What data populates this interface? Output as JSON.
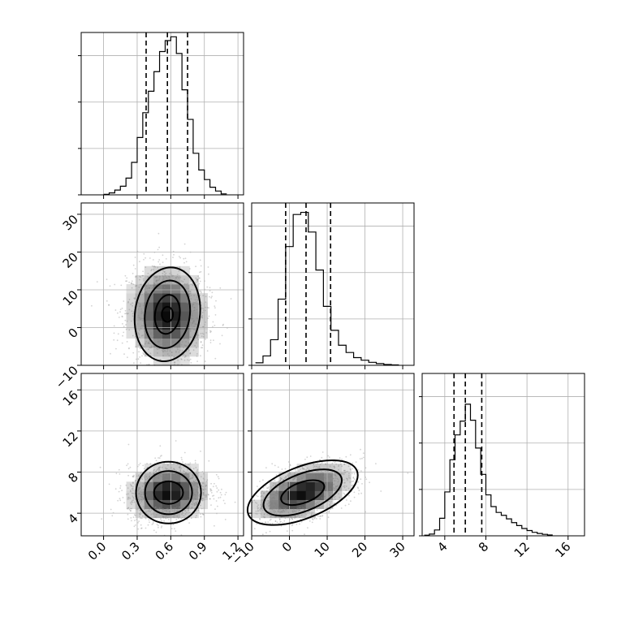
{
  "chart_data": {
    "type": "corner",
    "colors": {
      "line": "#000000",
      "grid": "#b0b0b0",
      "points": "#808080"
    },
    "grid": true,
    "parameters": [
      {
        "name": "",
        "range": [
          -0.2,
          1.25
        ],
        "ticks": [
          0.0,
          0.3,
          0.6,
          0.9,
          1.2
        ],
        "tick_labels": [
          "0.0",
          "0.3",
          "0.6",
          "0.9",
          "1.2"
        ],
        "quantiles": [
          0.38,
          0.57,
          0.75
        ],
        "hist": {
          "bin_edges": [
            0.0,
            0.05,
            0.1,
            0.15,
            0.2,
            0.25,
            0.3,
            0.35,
            0.4,
            0.45,
            0.5,
            0.55,
            0.6,
            0.65,
            0.7,
            0.75,
            0.8,
            0.85,
            0.9,
            0.95,
            1.0,
            1.05,
            1.1
          ],
          "counts": [
            1,
            4,
            10,
            18,
            35,
            68,
            120,
            172,
            217,
            258,
            300,
            323,
            331,
            296,
            220,
            158,
            87,
            52,
            32,
            16,
            8,
            2
          ],
          "max": 340
        }
      },
      {
        "name": "",
        "range": [
          -10,
          33
        ],
        "ticks": [
          -10,
          0,
          10,
          20,
          30
        ],
        "tick_labels": [
          "−10",
          "0",
          "10",
          "20",
          "30"
        ],
        "quantiles": [
          -1.0,
          4.4,
          10.9
        ],
        "hist": {
          "bin_edges": [
            -9,
            -7,
            -5,
            -3,
            -1,
            1,
            3,
            5,
            7,
            9,
            11,
            13,
            15,
            17,
            19,
            21,
            23,
            25,
            27,
            29
          ],
          "counts": [
            6,
            22,
            60,
            155,
            278,
            353,
            358,
            312,
            223,
            138,
            82,
            47,
            30,
            18,
            12,
            7,
            4,
            2,
            1
          ],
          "max": 380
        }
      },
      {
        "name": "",
        "range": [
          1.8,
          17.6
        ],
        "ticks": [
          4,
          8,
          12,
          16
        ],
        "tick_labels": [
          "4",
          "8",
          "12",
          "16"
        ],
        "quantiles": [
          4.9,
          6.0,
          7.6
        ],
        "hist": {
          "bin_edges": [
            2,
            2.5,
            3,
            3.5,
            4,
            4.5,
            5,
            5.5,
            6,
            6.5,
            7,
            7.5,
            8,
            8.5,
            9,
            9.5,
            10,
            10.5,
            11,
            11.5,
            12,
            12.5,
            13,
            13.5,
            14,
            14.5
          ],
          "counts": [
            2,
            6,
            20,
            60,
            150,
            260,
            345,
            392,
            450,
            395,
            300,
            210,
            140,
            100,
            80,
            70,
            58,
            45,
            35,
            25,
            18,
            12,
            8,
            5,
            3
          ],
          "max": 555
        }
      }
    ],
    "pairs": [
      {
        "x_param": 0,
        "y_param": 1,
        "center": [
          0.57,
          3.5
        ],
        "spread": [
          0.18,
          6.5
        ],
        "corr": -0.05,
        "contours": [
          {
            "rx": 0.29,
            "ry": 12.5,
            "rot": -8
          },
          {
            "rx": 0.2,
            "ry": 9.0,
            "rot": -8
          },
          {
            "rx": 0.11,
            "ry": 5.2,
            "rot": -8
          },
          {
            "rx": 0.05,
            "ry": 2.0,
            "rot": 0
          }
        ]
      },
      {
        "x_param": 0,
        "y_param": 2,
        "center": [
          0.58,
          6.0
        ],
        "spread": [
          0.18,
          1.4
        ],
        "corr": 0.1,
        "contours": [
          {
            "rx": 0.29,
            "ry": 3.0,
            "rot": 0
          },
          {
            "rx": 0.21,
            "ry": 2.1,
            "rot": 0
          },
          {
            "rx": 0.13,
            "ry": 1.1,
            "rot": 0
          }
        ]
      },
      {
        "x_param": 1,
        "y_param": 2,
        "center": [
          3.5,
          6.0
        ],
        "spread": [
          6.5,
          1.4
        ],
        "corr": 0.5,
        "contours": [
          {
            "rx": 15.5,
            "ry": 2.5,
            "rot": 22
          },
          {
            "rx": 11.0,
            "ry": 1.8,
            "rot": 22
          },
          {
            "rx": 6.0,
            "ry": 1.0,
            "rot": 20
          }
        ]
      }
    ]
  }
}
